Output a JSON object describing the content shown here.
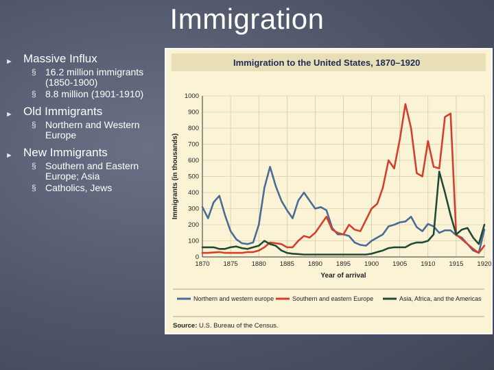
{
  "slide": {
    "title": "Immigration",
    "bullets": [
      {
        "text": "Massive Influx",
        "subs": [
          "16.2 million immigrants (1850-1900)",
          "8.8 million (1901-1910)"
        ]
      },
      {
        "text": "Old Immigrants",
        "subs": [
          "Northern and Western Europe"
        ]
      },
      {
        "text": "New Immigrants",
        "subs": [
          "Southern and Eastern Europe; Asia",
          "Catholics, Jews"
        ]
      }
    ]
  },
  "colors": {
    "background": "#4f566a",
    "chart_bg": "#fbf3d6",
    "title_bar": "#e9dfb6",
    "northern": "#4a6b96",
    "southern": "#d2402b",
    "asia": "#1f4a33"
  },
  "chart_data": {
    "type": "line",
    "title": "Immigration to the United States, 1870–1920",
    "xlabel": "Year of arrival",
    "ylabel": "Immigrants (in thousands)",
    "xlim": [
      1870,
      1920
    ],
    "ylim": [
      0,
      1000
    ],
    "x_ticks": [
      1870,
      1875,
      1880,
      1885,
      1890,
      1895,
      1900,
      1905,
      1910,
      1915,
      1920
    ],
    "y_ticks": [
      0,
      100,
      200,
      300,
      400,
      500,
      600,
      700,
      800,
      900,
      1000
    ],
    "grid": true,
    "legend_position": "bottom",
    "source_label": "Source:",
    "source_text": "U.S. Bureau of the Census.",
    "series": [
      {
        "name": "Northern and western europe",
        "color": "#4a6b96",
        "x": [
          1870,
          1871,
          1872,
          1873,
          1874,
          1875,
          1876,
          1877,
          1878,
          1879,
          1880,
          1881,
          1882,
          1883,
          1884,
          1885,
          1886,
          1887,
          1888,
          1889,
          1890,
          1891,
          1892,
          1893,
          1894,
          1895,
          1896,
          1897,
          1898,
          1899,
          1900,
          1901,
          1902,
          1903,
          1904,
          1905,
          1906,
          1907,
          1908,
          1909,
          1910,
          1911,
          1912,
          1913,
          1914,
          1915,
          1916,
          1917,
          1918,
          1919,
          1920
        ],
        "y": [
          310,
          240,
          340,
          380,
          260,
          160,
          110,
          85,
          80,
          90,
          200,
          430,
          560,
          440,
          350,
          290,
          240,
          350,
          400,
          350,
          300,
          310,
          290,
          180,
          140,
          140,
          130,
          90,
          75,
          70,
          100,
          120,
          140,
          190,
          200,
          215,
          220,
          250,
          185,
          160,
          205,
          190,
          150,
          165,
          165,
          135,
          120,
          80,
          40,
          25,
          170
        ]
      },
      {
        "name": "Southern and eastern Europe",
        "color": "#d2402b",
        "x": [
          1870,
          1871,
          1872,
          1873,
          1874,
          1875,
          1876,
          1877,
          1878,
          1879,
          1880,
          1881,
          1882,
          1883,
          1884,
          1885,
          1886,
          1887,
          1888,
          1889,
          1890,
          1891,
          1892,
          1893,
          1894,
          1895,
          1896,
          1897,
          1898,
          1899,
          1900,
          1901,
          1902,
          1903,
          1904,
          1905,
          1906,
          1907,
          1908,
          1909,
          1910,
          1911,
          1912,
          1913,
          1914,
          1915,
          1916,
          1917,
          1918,
          1919,
          1920
        ],
        "y": [
          25,
          25,
          28,
          30,
          25,
          25,
          25,
          25,
          30,
          30,
          40,
          60,
          90,
          85,
          80,
          60,
          60,
          100,
          130,
          120,
          150,
          200,
          250,
          170,
          150,
          140,
          200,
          170,
          160,
          230,
          300,
          330,
          430,
          600,
          550,
          730,
          950,
          800,
          520,
          500,
          720,
          560,
          550,
          870,
          890,
          140,
          110,
          80,
          50,
          25,
          70
        ]
      },
      {
        "name": "Asia, Africa, and the Americas",
        "color": "#1f4a33",
        "x": [
          1870,
          1871,
          1872,
          1873,
          1874,
          1875,
          1876,
          1877,
          1878,
          1879,
          1880,
          1881,
          1882,
          1883,
          1884,
          1885,
          1886,
          1887,
          1888,
          1889,
          1890,
          1891,
          1892,
          1893,
          1894,
          1895,
          1896,
          1897,
          1898,
          1899,
          1900,
          1901,
          1902,
          1903,
          1904,
          1905,
          1906,
          1907,
          1908,
          1909,
          1910,
          1911,
          1912,
          1913,
          1914,
          1915,
          1916,
          1917,
          1918,
          1919,
          1920
        ],
        "y": [
          60,
          60,
          60,
          50,
          50,
          60,
          65,
          55,
          50,
          60,
          70,
          100,
          80,
          70,
          40,
          25,
          20,
          18,
          15,
          15,
          15,
          15,
          15,
          15,
          15,
          15,
          15,
          15,
          15,
          15,
          20,
          30,
          40,
          55,
          60,
          60,
          60,
          80,
          90,
          90,
          100,
          140,
          530,
          400,
          260,
          140,
          170,
          180,
          120,
          80,
          200
        ]
      }
    ]
  }
}
